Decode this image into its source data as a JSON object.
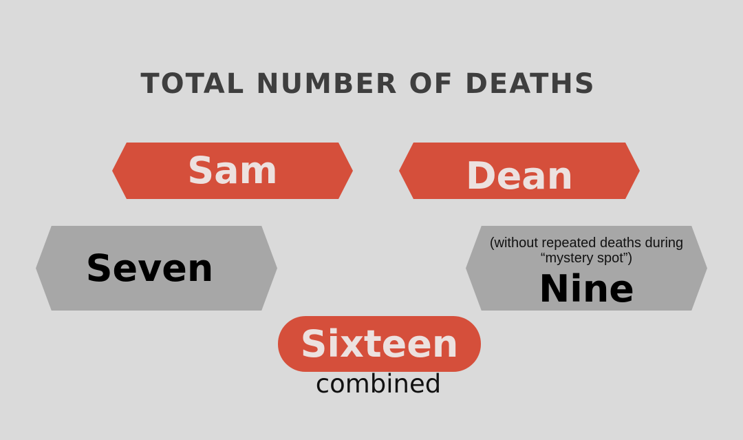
{
  "title": "TOTAL NUMBER OF DEATHS",
  "brothers": [
    {
      "name": "Sam",
      "count": "Seven",
      "note": ""
    },
    {
      "name": "Dean",
      "count": "Nine",
      "note": "(without repeated deaths during “mystery spot”)"
    }
  ],
  "total": {
    "count": "Sixteen",
    "label": "combined"
  },
  "colors": {
    "background": "#dadada",
    "accent": "#d54f3b",
    "name_text": "#ece1df",
    "count_box": "#a7a7a7",
    "title_text": "#3e3e3e"
  }
}
